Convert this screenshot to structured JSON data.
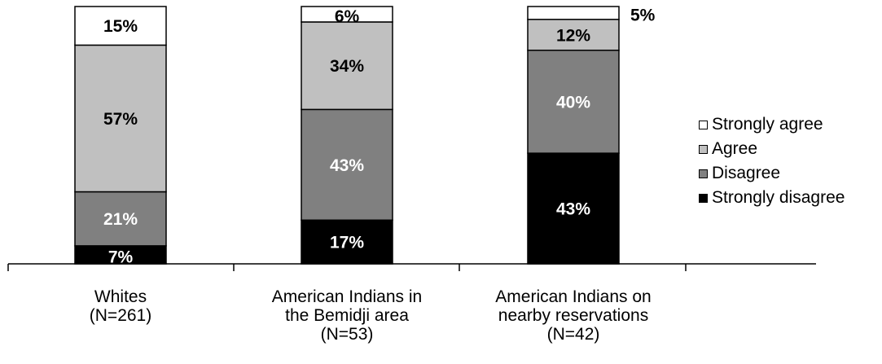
{
  "chart_data": {
    "type": "bar",
    "stacked": true,
    "orientation": "vertical",
    "categories": [
      "Whites\n(N=261)",
      "American Indians in\nthe Bemidji area\n(N=53)",
      "American Indians on\nnearby reservations\n(N=42)"
    ],
    "series": [
      {
        "name": "Strongly disagree",
        "values": [
          7,
          17,
          43
        ],
        "color": "#000000",
        "label_color": "#ffffff"
      },
      {
        "name": "Disagree",
        "values": [
          21,
          43,
          40
        ],
        "color": "#808080",
        "label_color": "#ffffff"
      },
      {
        "name": "Agree",
        "values": [
          57,
          34,
          12
        ],
        "color": "#c0c0c0",
        "label_color": "#000000"
      },
      {
        "name": "Strongly agree",
        "values": [
          15,
          6,
          5
        ],
        "color": "#ffffff",
        "label_color": "#000000"
      }
    ],
    "data_labels": [
      [
        "7%",
        "17%",
        "43%"
      ],
      [
        "21%",
        "43%",
        "40%"
      ],
      [
        "57%",
        "34%",
        "12%"
      ],
      [
        "15%",
        "6%",
        "5%"
      ]
    ],
    "ylim": [
      0,
      100
    ],
    "legend_position": "right",
    "legend_order": [
      "Strongly agree",
      "Agree",
      "Disagree",
      "Strongly disagree"
    ],
    "grid": false
  }
}
